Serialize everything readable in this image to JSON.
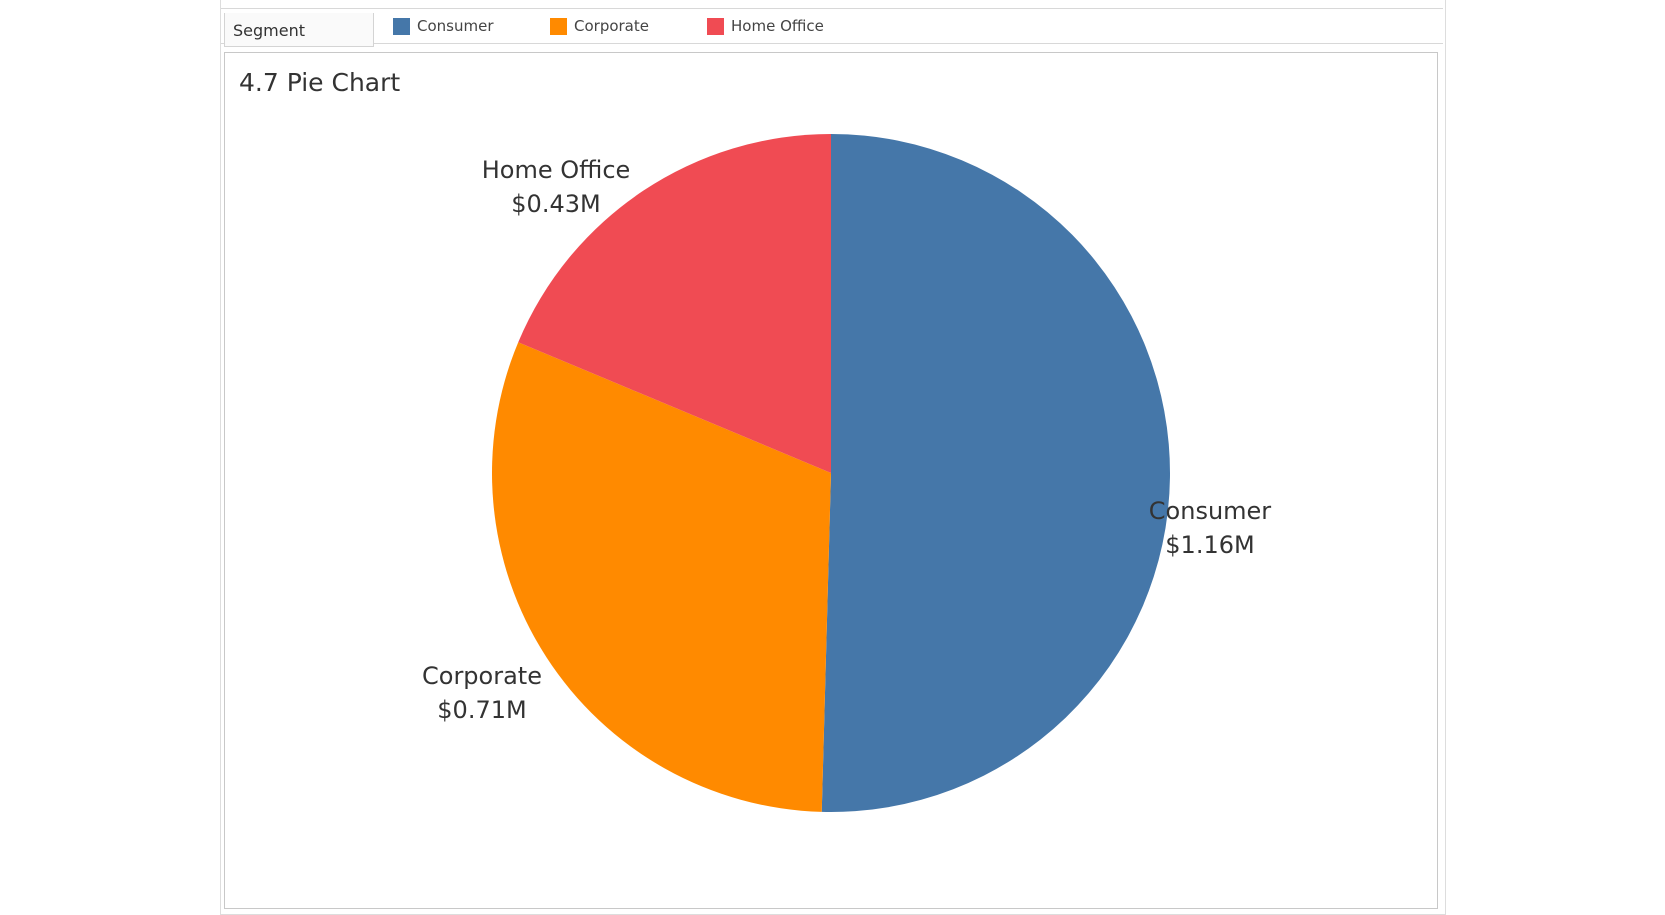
{
  "legend": {
    "title": "Segment",
    "items": [
      {
        "label": "Consumer",
        "color": "#4577a9"
      },
      {
        "label": "Corporate",
        "color": "#ff8a00"
      },
      {
        "label": "Home Office",
        "color": "#f04b53"
      }
    ]
  },
  "chart_data": {
    "type": "pie",
    "title": "4.7 Pie Chart",
    "legend_title": "Segment",
    "legend_position": "top",
    "slices": [
      {
        "name": "Consumer",
        "value": 1.16,
        "label": "$1.16M",
        "color": "#4577a9"
      },
      {
        "name": "Corporate",
        "value": 0.71,
        "label": "$0.71M",
        "color": "#ff8a00"
      },
      {
        "name": "Home Office",
        "value": 0.43,
        "label": "$0.43M",
        "color": "#f04b53"
      }
    ]
  }
}
